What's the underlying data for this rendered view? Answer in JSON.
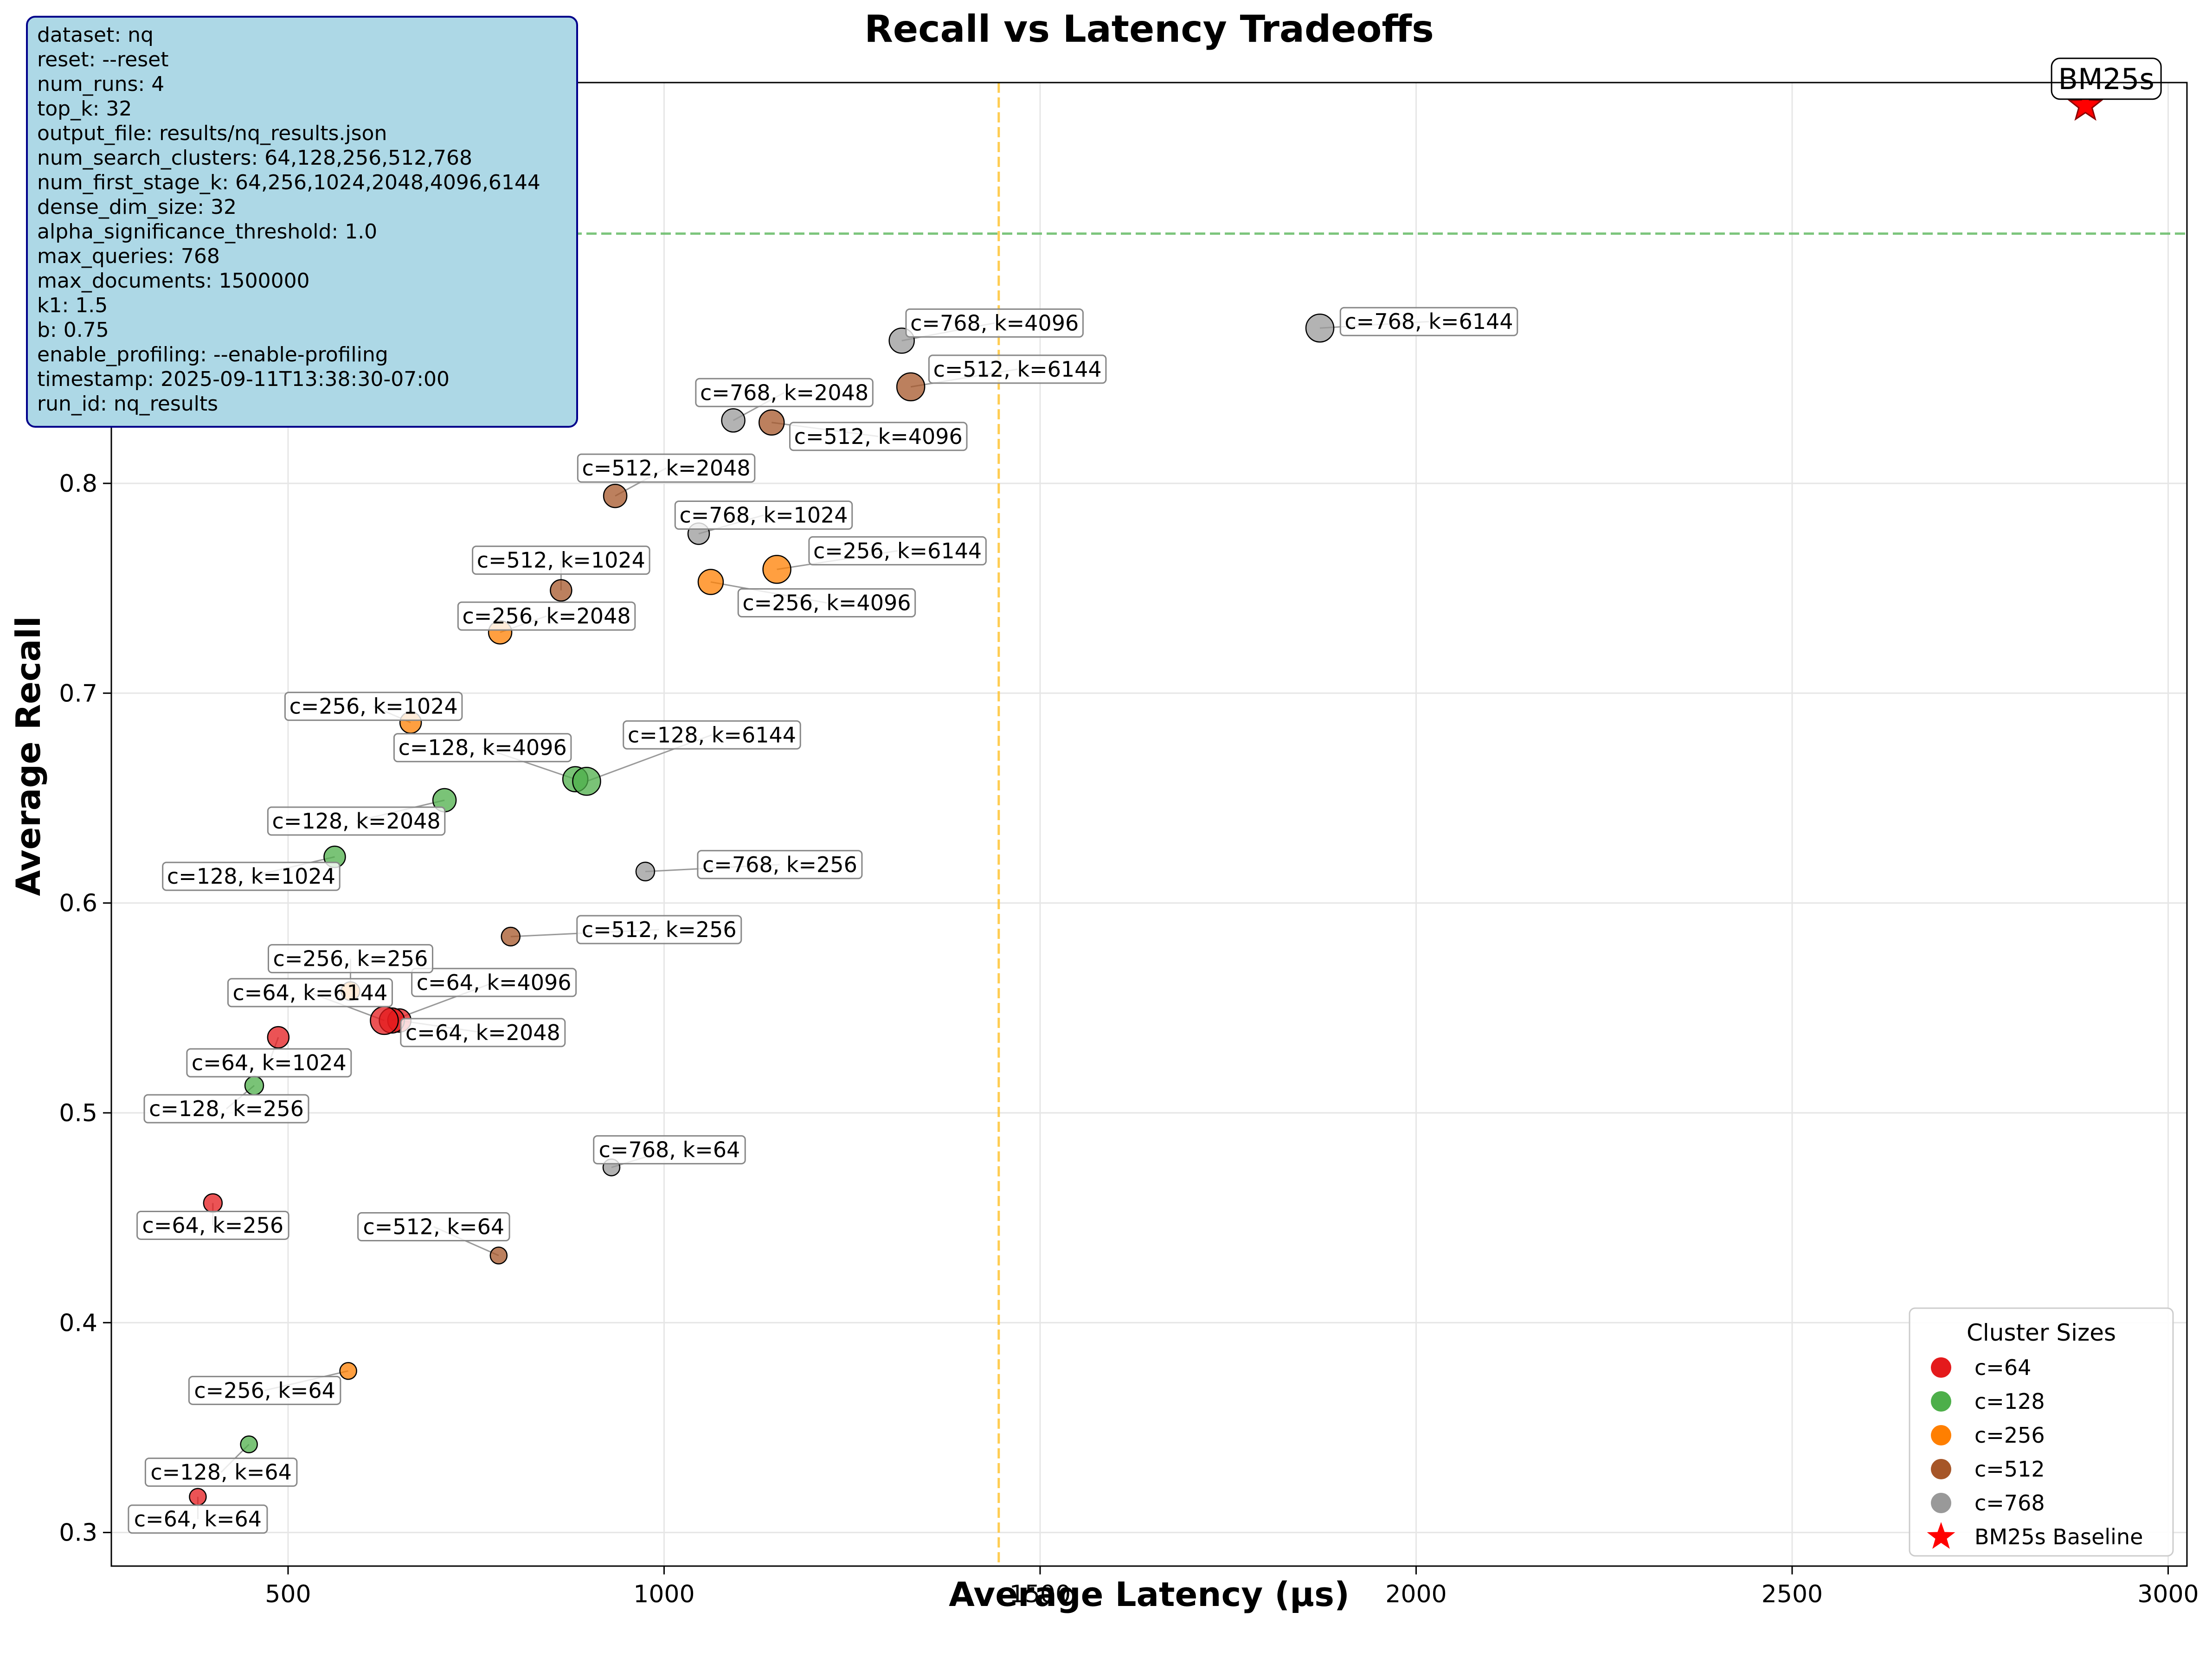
{
  "chart_data": {
    "type": "scatter",
    "title": "Recall vs Latency Tradeoffs",
    "xlabel": "Average Latency (μs)",
    "ylabel": "Average Recall",
    "xlim": [
      265,
      3025
    ],
    "ylim": [
      0.284,
      0.991
    ],
    "xticks": [
      500,
      1000,
      1500,
      2000,
      2500,
      3000
    ],
    "yticks": [
      0.3,
      0.4,
      0.5,
      0.6,
      0.7,
      0.8
    ],
    "ytick_labels": [
      "0.3",
      "0.4",
      "0.5",
      "0.6",
      "0.7",
      "0.8"
    ],
    "grid": true,
    "vline_x": 1445,
    "hline_y": 0.919,
    "series": [
      {
        "name": "c=64",
        "color": "#e41a1c",
        "points": [
          {
            "label": "c=64, k=64",
            "x": 380,
            "y": 0.317,
            "k": 64
          },
          {
            "label": "c=64, k=256",
            "x": 400,
            "y": 0.457,
            "k": 256
          },
          {
            "label": "c=64, k=1024",
            "x": 487,
            "y": 0.536,
            "k": 1024
          },
          {
            "label": "c=64, k=2048",
            "x": 648,
            "y": 0.544,
            "k": 2048
          },
          {
            "label": "c=64, k=4096",
            "x": 638,
            "y": 0.544,
            "k": 4096
          },
          {
            "label": "c=64, k=6144",
            "x": 628,
            "y": 0.544,
            "k": 6144
          }
        ]
      },
      {
        "name": "c=128",
        "color": "#4daf4a",
        "points": [
          {
            "label": "c=128, k=64",
            "x": 448,
            "y": 0.342,
            "k": 64
          },
          {
            "label": "c=128, k=256",
            "x": 455,
            "y": 0.513,
            "k": 256
          },
          {
            "label": "c=128, k=1024",
            "x": 562,
            "y": 0.622,
            "k": 1024
          },
          {
            "label": "c=128, k=2048",
            "x": 708,
            "y": 0.649,
            "k": 2048
          },
          {
            "label": "c=128, k=4096",
            "x": 882,
            "y": 0.659,
            "k": 4096
          },
          {
            "label": "c=128, k=6144",
            "x": 897,
            "y": 0.658,
            "k": 6144
          }
        ]
      },
      {
        "name": "c=256",
        "color": "#ff7f00",
        "points": [
          {
            "label": "c=256, k=64",
            "x": 580,
            "y": 0.377,
            "k": 64
          },
          {
            "label": "c=256, k=256",
            "x": 583,
            "y": 0.558,
            "k": 256
          },
          {
            "label": "c=256, k=1024",
            "x": 663,
            "y": 0.686,
            "k": 1024
          },
          {
            "label": "c=256, k=2048",
            "x": 782,
            "y": 0.729,
            "k": 2048
          },
          {
            "label": "c=256, k=4096",
            "x": 1062,
            "y": 0.753,
            "k": 4096
          },
          {
            "label": "c=256, k=6144",
            "x": 1150,
            "y": 0.759,
            "k": 6144
          }
        ]
      },
      {
        "name": "c=512",
        "color": "#a65628",
        "points": [
          {
            "label": "c=512, k=64",
            "x": 780,
            "y": 0.432,
            "k": 64
          },
          {
            "label": "c=512, k=256",
            "x": 796,
            "y": 0.584,
            "k": 256
          },
          {
            "label": "c=512, k=1024",
            "x": 863,
            "y": 0.749,
            "k": 1024
          },
          {
            "label": "c=512, k=2048",
            "x": 935,
            "y": 0.794,
            "k": 2048
          },
          {
            "label": "c=512, k=4096",
            "x": 1143,
            "y": 0.829,
            "k": 4096
          },
          {
            "label": "c=512, k=6144",
            "x": 1328,
            "y": 0.846,
            "k": 6144
          }
        ]
      },
      {
        "name": "c=768",
        "color": "#999999",
        "points": [
          {
            "label": "c=768, k=64",
            "x": 930,
            "y": 0.474,
            "k": 64
          },
          {
            "label": "c=768, k=256",
            "x": 975,
            "y": 0.615,
            "k": 256
          },
          {
            "label": "c=768, k=1024",
            "x": 1046,
            "y": 0.776,
            "k": 1024
          },
          {
            "label": "c=768, k=2048",
            "x": 1092,
            "y": 0.83,
            "k": 2048
          },
          {
            "label": "c=768, k=4096",
            "x": 1316,
            "y": 0.868,
            "k": 4096
          },
          {
            "label": "c=768, k=6144",
            "x": 1872,
            "y": 0.874,
            "k": 6144
          }
        ]
      }
    ],
    "baseline": {
      "label": "BM25s",
      "x": 2890,
      "y": 0.98,
      "color": "#ff0000",
      "legend": "BM25s Baseline"
    },
    "legend": {
      "title": "Cluster Sizes",
      "position": "lower-right",
      "entries": [
        "c=64",
        "c=128",
        "c=256",
        "c=512",
        "c=768",
        "BM25s Baseline"
      ]
    }
  },
  "info_box": {
    "lines": [
      "dataset: nq",
      "reset: --reset",
      "num_runs: 4",
      "top_k: 32",
      "output_file: results/nq_results.json",
      "num_search_clusters: 64,128,256,512,768",
      "num_first_stage_k: 64,256,1024,2048,4096,6144",
      "dense_dim_size: 32",
      "alpha_significance_threshold: 1.0",
      "max_queries: 768",
      "max_documents: 1500000",
      "k1: 1.5",
      "b: 0.75",
      "enable_profiling: --enable-profiling",
      "timestamp: 2025-09-11T13:38:30-07:00",
      "run_id: nq_results"
    ],
    "fill": "#add8e6",
    "border": "#00008b"
  }
}
